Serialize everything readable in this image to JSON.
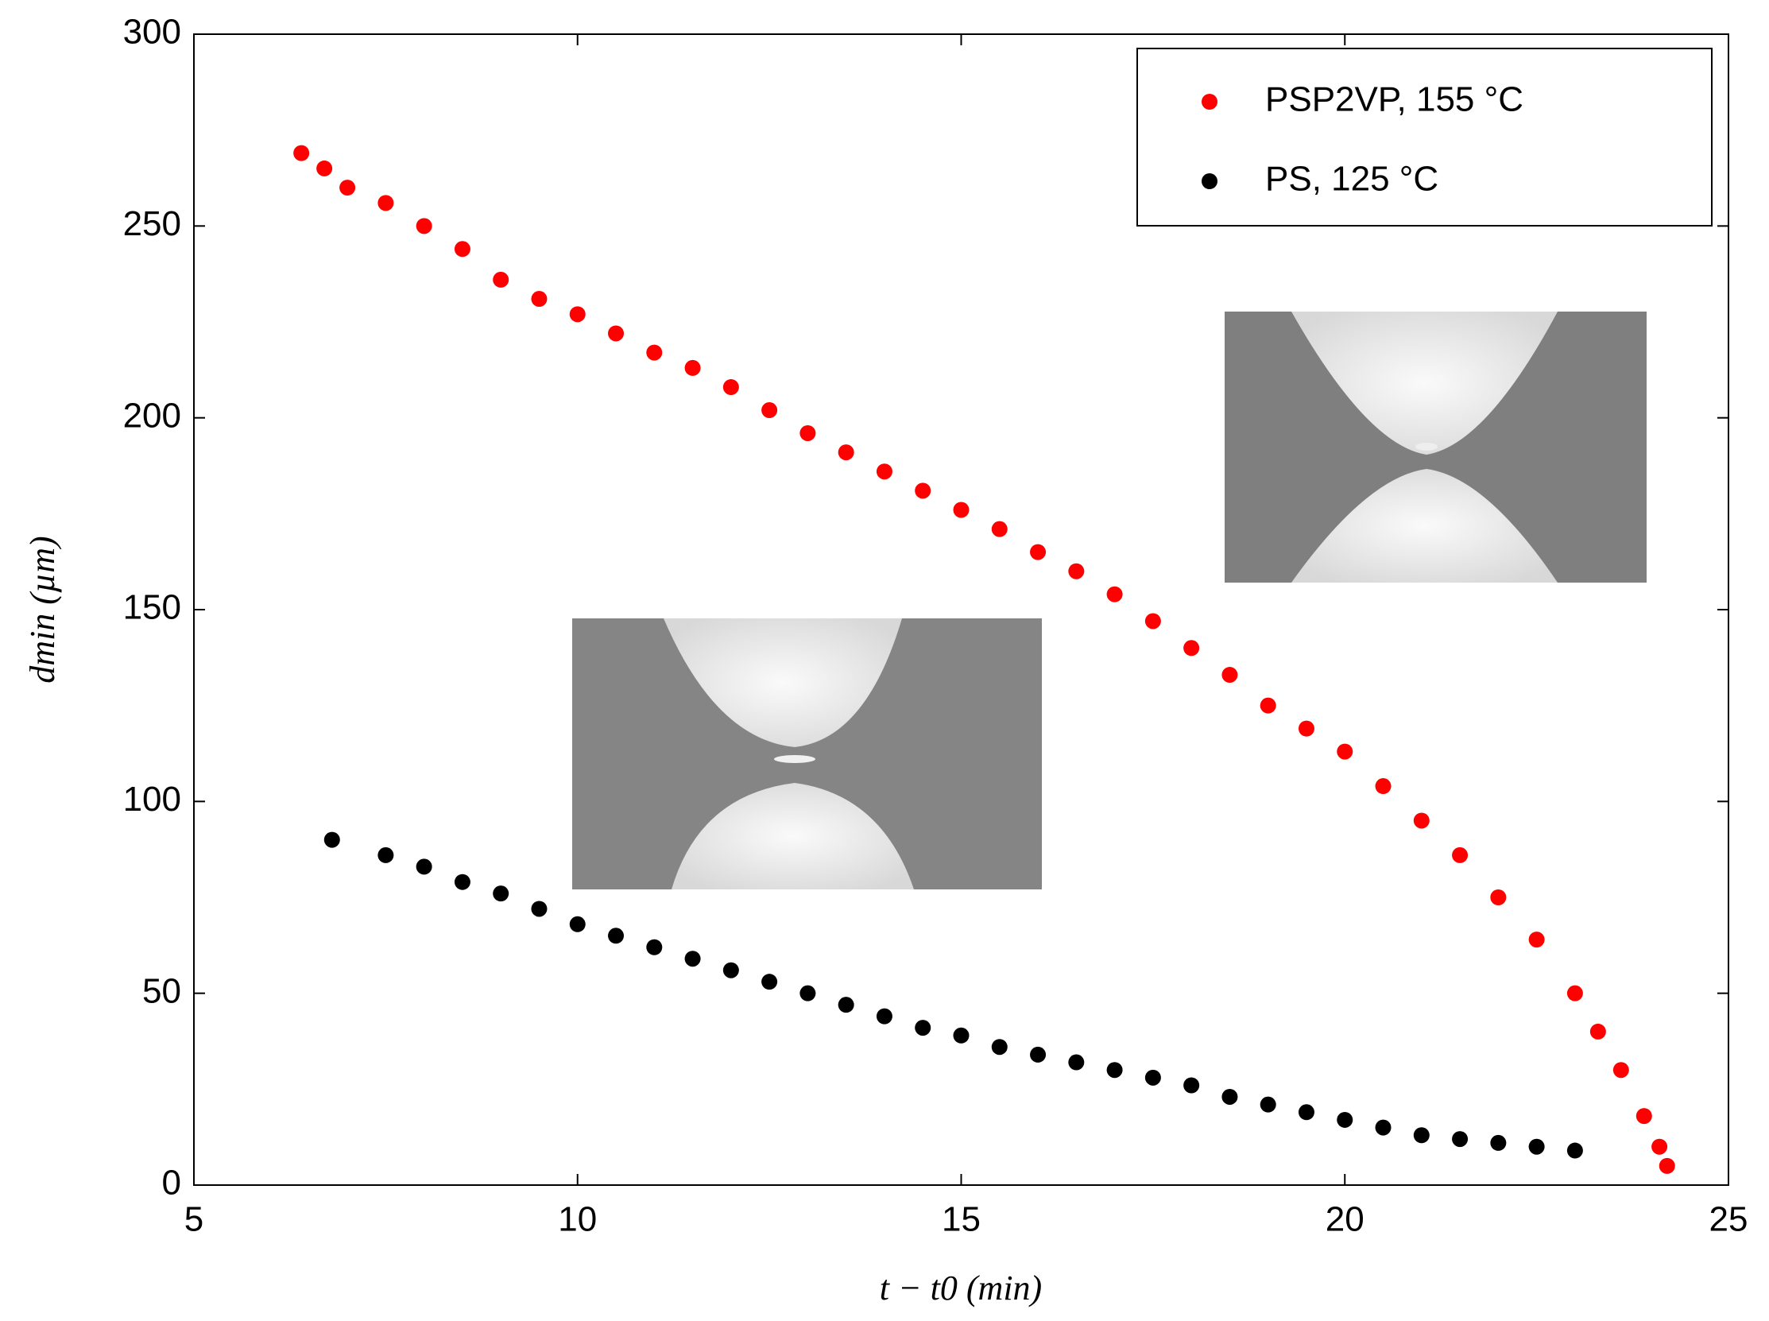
{
  "chart_data": {
    "type": "scatter",
    "xlabel": "t − t0 (min)",
    "ylabel": "dmin (µm)",
    "xlim": [
      5,
      25
    ],
    "xticks": [
      5,
      10,
      15,
      20,
      25
    ],
    "ylim": [
      0,
      300
    ],
    "yticks": [
      0,
      50,
      100,
      150,
      200,
      250,
      300
    ],
    "legend": "upper right",
    "grid": false,
    "series": [
      {
        "name": "PSP2VP, 155 °C",
        "color": "#ff0000",
        "x": [
          6.4,
          6.7,
          7.0,
          7.5,
          8.0,
          8.5,
          9.0,
          9.5,
          10.0,
          10.5,
          11.0,
          11.5,
          12.0,
          12.5,
          13.0,
          13.5,
          14.0,
          14.5,
          15.0,
          15.5,
          16.0,
          16.5,
          17.0,
          17.5,
          18.0,
          18.5,
          19.0,
          19.5,
          20.0,
          20.5,
          21.0,
          21.5,
          22.0,
          22.5,
          23.0,
          23.3,
          23.6,
          23.9,
          24.1,
          24.2
        ],
        "values": [
          269,
          265,
          260,
          256,
          250,
          244,
          236,
          231,
          227,
          222,
          217,
          213,
          208,
          202,
          196,
          191,
          186,
          181,
          176,
          171,
          165,
          160,
          154,
          147,
          140,
          133,
          125,
          119,
          113,
          104,
          95,
          86,
          75,
          64,
          50,
          40,
          30,
          18,
          10,
          5
        ]
      },
      {
        "name": "PS, 125 °C",
        "color": "#000000",
        "x": [
          6.8,
          7.5,
          8.0,
          8.5,
          9.0,
          9.5,
          10.0,
          10.5,
          11.0,
          11.5,
          12.0,
          12.5,
          13.0,
          13.5,
          14.0,
          14.5,
          15.0,
          15.5,
          16.0,
          16.5,
          17.0,
          17.5,
          18.0,
          18.5,
          19.0,
          19.5,
          20.0,
          20.5,
          21.0,
          21.5,
          22.0,
          22.5,
          23.0
        ],
        "values": [
          90,
          86,
          83,
          79,
          76,
          72,
          68,
          65,
          62,
          59,
          56,
          53,
          50,
          47,
          44,
          41,
          39,
          36,
          34,
          32,
          30,
          28,
          26,
          23,
          21,
          19,
          17,
          15,
          13,
          12,
          11,
          10,
          9
        ]
      }
    ]
  }
}
